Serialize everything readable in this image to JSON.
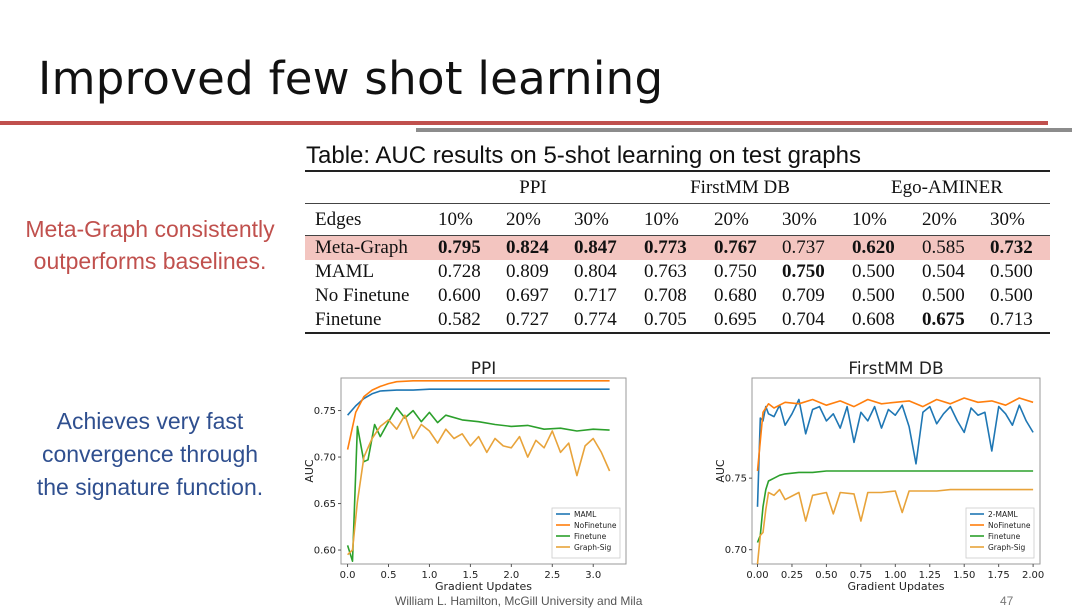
{
  "slide": {
    "title": "Improved few shot learning",
    "footer": "William L. Hamilton, McGill University and Mila",
    "page_number": "47",
    "rule_colors": [
      "#c0504d",
      "#8c8c8c"
    ]
  },
  "side_notes": {
    "red": [
      "Meta-Graph consistently",
      "outperforms baselines."
    ],
    "blue": [
      "Achieves very fast",
      "convergence through",
      "the signature function."
    ],
    "red_color": "#c0504d",
    "blue_color": "#2f4f8f"
  },
  "table": {
    "caption": "Table: AUC results on 5-shot learning on test graphs",
    "groups": [
      "PPI",
      "FirstMM DB",
      "Ego-AMINER"
    ],
    "header_label": "Edges",
    "columns": [
      "10%",
      "20%",
      "30%",
      "10%",
      "20%",
      "30%",
      "10%",
      "20%",
      "30%"
    ],
    "highlight_color": "#f3c5c0",
    "rows": [
      {
        "method": "Meta-Graph",
        "values": [
          "0.795",
          "0.824",
          "0.847",
          "0.773",
          "0.767",
          "0.737",
          "0.620",
          "0.585",
          "0.732"
        ],
        "bold": [
          true,
          true,
          true,
          true,
          true,
          false,
          true,
          false,
          true
        ],
        "highlight": true
      },
      {
        "method": "MAML",
        "values": [
          "0.728",
          "0.809",
          "0.804",
          "0.763",
          "0.750",
          "0.750",
          "0.500",
          "0.504",
          "0.500"
        ],
        "bold": [
          false,
          false,
          false,
          false,
          false,
          true,
          false,
          false,
          false
        ],
        "highlight": false
      },
      {
        "method": "No Finetune",
        "values": [
          "0.600",
          "0.697",
          "0.717",
          "0.708",
          "0.680",
          "0.709",
          "0.500",
          "0.500",
          "0.500"
        ],
        "bold": [
          false,
          false,
          false,
          false,
          false,
          false,
          false,
          false,
          false
        ],
        "highlight": false
      },
      {
        "method": "Finetune",
        "values": [
          "0.582",
          "0.727",
          "0.774",
          "0.705",
          "0.695",
          "0.704",
          "0.608",
          "0.675",
          "0.713"
        ],
        "bold": [
          false,
          false,
          false,
          false,
          false,
          false,
          false,
          true,
          false
        ],
        "highlight": false
      }
    ]
  },
  "chart_data": [
    {
      "type": "line",
      "title": "PPI",
      "xlabel": "Gradient Updates",
      "ylabel": "AUC",
      "xlim": [
        -0.08,
        3.4
      ],
      "ylim": [
        0.585,
        0.785
      ],
      "xticks": [
        "0.0",
        "0.5",
        "1.0",
        "1.5",
        "2.0",
        "2.5",
        "3.0"
      ],
      "xtick_values": [
        0,
        0.5,
        1.0,
        1.5,
        2.0,
        2.5,
        3.0
      ],
      "yticks": [
        "0.60",
        "0.65",
        "0.70",
        "0.75"
      ],
      "ytick_values": [
        0.6,
        0.65,
        0.7,
        0.75
      ],
      "grid": false,
      "legend_position": "bottom-right",
      "series": [
        {
          "name": "MAML",
          "color": "#1f77b4",
          "x": [
            0,
            0.1,
            0.2,
            0.3,
            0.4,
            0.6,
            0.8,
            1.0,
            1.5,
            2.0,
            2.5,
            3.0,
            3.2
          ],
          "y": [
            0.745,
            0.755,
            0.763,
            0.768,
            0.771,
            0.772,
            0.772,
            0.773,
            0.773,
            0.773,
            0.773,
            0.773,
            0.773
          ]
        },
        {
          "name": "NoFinetune",
          "color": "#ff7f0e",
          "x": [
            0,
            0.1,
            0.2,
            0.3,
            0.4,
            0.5,
            0.6,
            0.8,
            1.0,
            1.5,
            2.0,
            2.5,
            3.0,
            3.2
          ],
          "y": [
            0.708,
            0.748,
            0.765,
            0.772,
            0.776,
            0.779,
            0.781,
            0.782,
            0.782,
            0.782,
            0.782,
            0.782,
            0.782,
            0.782
          ]
        },
        {
          "name": "Finetune",
          "color": "#2ca02c",
          "x": [
            0,
            0.06,
            0.12,
            0.2,
            0.25,
            0.33,
            0.4,
            0.5,
            0.6,
            0.7,
            0.8,
            0.9,
            1.0,
            1.1,
            1.2,
            1.4,
            1.6,
            1.8,
            2.0,
            2.2,
            2.4,
            2.6,
            2.8,
            3.0,
            3.2
          ],
          "y": [
            0.605,
            0.588,
            0.733,
            0.695,
            0.697,
            0.735,
            0.722,
            0.738,
            0.753,
            0.742,
            0.75,
            0.738,
            0.748,
            0.737,
            0.745,
            0.74,
            0.738,
            0.735,
            0.733,
            0.734,
            0.73,
            0.731,
            0.728,
            0.73,
            0.729
          ]
        },
        {
          "name": "Graph-Sig",
          "color": "#e8a33a",
          "x": [
            0,
            0.06,
            0.12,
            0.2,
            0.3,
            0.4,
            0.5,
            0.6,
            0.7,
            0.8,
            0.9,
            1.0,
            1.1,
            1.2,
            1.3,
            1.4,
            1.5,
            1.6,
            1.7,
            1.8,
            1.9,
            2.0,
            2.1,
            2.2,
            2.3,
            2.4,
            2.5,
            2.6,
            2.7,
            2.8,
            2.9,
            3.0,
            3.1,
            3.2
          ],
          "y": [
            0.595,
            0.6,
            0.652,
            0.7,
            0.72,
            0.733,
            0.74,
            0.73,
            0.745,
            0.72,
            0.735,
            0.728,
            0.715,
            0.73,
            0.72,
            0.725,
            0.712,
            0.722,
            0.705,
            0.72,
            0.712,
            0.71,
            0.722,
            0.7,
            0.718,
            0.71,
            0.728,
            0.705,
            0.715,
            0.68,
            0.712,
            0.72,
            0.705,
            0.685
          ]
        }
      ]
    },
    {
      "type": "line",
      "title": "FirstMM DB",
      "xlabel": "Gradient Updates",
      "ylabel": "AUC",
      "xlim": [
        -0.04,
        2.05
      ],
      "ylim": [
        0.69,
        0.82
      ],
      "xticks": [
        "0.00",
        "0.25",
        "0.50",
        "0.75",
        "1.00",
        "1.25",
        "1.50",
        "1.75",
        "2.00"
      ],
      "xtick_values": [
        0,
        0.25,
        0.5,
        0.75,
        1.0,
        1.25,
        1.5,
        1.75,
        2.0
      ],
      "yticks": [
        "0.70",
        "0.75"
      ],
      "ytick_values": [
        0.7,
        0.75
      ],
      "grid": false,
      "legend_position": "bottom-right",
      "series": [
        {
          "name": "2-MAML",
          "color": "#1f77b4",
          "x": [
            0,
            0.02,
            0.04,
            0.06,
            0.08,
            0.12,
            0.16,
            0.2,
            0.25,
            0.3,
            0.35,
            0.4,
            0.45,
            0.5,
            0.55,
            0.6,
            0.65,
            0.7,
            0.75,
            0.8,
            0.85,
            0.9,
            0.95,
            1.0,
            1.05,
            1.1,
            1.15,
            1.2,
            1.25,
            1.3,
            1.35,
            1.4,
            1.45,
            1.5,
            1.55,
            1.6,
            1.65,
            1.7,
            1.75,
            1.8,
            1.85,
            1.9,
            1.95,
            2.0
          ],
          "y": [
            0.73,
            0.792,
            0.79,
            0.8,
            0.795,
            0.793,
            0.801,
            0.787,
            0.795,
            0.805,
            0.781,
            0.798,
            0.8,
            0.79,
            0.795,
            0.785,
            0.8,
            0.775,
            0.796,
            0.79,
            0.8,
            0.785,
            0.798,
            0.794,
            0.801,
            0.786,
            0.76,
            0.796,
            0.8,
            0.788,
            0.795,
            0.8,
            0.79,
            0.782,
            0.799,
            0.794,
            0.796,
            0.769,
            0.8,
            0.795,
            0.787,
            0.801,
            0.79,
            0.782
          ]
        },
        {
          "name": "NoFinetune",
          "color": "#ff7f0e",
          "x": [
            0,
            0.04,
            0.08,
            0.12,
            0.2,
            0.3,
            0.4,
            0.5,
            0.6,
            0.7,
            0.8,
            0.9,
            1.0,
            1.1,
            1.2,
            1.3,
            1.4,
            1.5,
            1.6,
            1.7,
            1.8,
            1.9,
            2.0
          ],
          "y": [
            0.755,
            0.796,
            0.802,
            0.799,
            0.803,
            0.802,
            0.805,
            0.801,
            0.804,
            0.8,
            0.805,
            0.802,
            0.803,
            0.804,
            0.8,
            0.805,
            0.802,
            0.806,
            0.803,
            0.804,
            0.801,
            0.806,
            0.803
          ]
        },
        {
          "name": "Finetune",
          "color": "#2ca02c",
          "x": [
            0,
            0.02,
            0.04,
            0.06,
            0.08,
            0.12,
            0.16,
            0.2,
            0.3,
            0.4,
            0.5,
            0.6,
            0.8,
            1.0,
            1.2,
            1.4,
            1.6,
            1.8,
            2.0
          ],
          "y": [
            0.705,
            0.71,
            0.73,
            0.742,
            0.748,
            0.75,
            0.752,
            0.753,
            0.754,
            0.754,
            0.755,
            0.755,
            0.755,
            0.755,
            0.755,
            0.755,
            0.755,
            0.755,
            0.755
          ]
        },
        {
          "name": "Graph-Sig",
          "color": "#e8a33a",
          "x": [
            0,
            0.02,
            0.04,
            0.06,
            0.08,
            0.12,
            0.16,
            0.2,
            0.3,
            0.35,
            0.4,
            0.5,
            0.55,
            0.6,
            0.7,
            0.75,
            0.8,
            0.9,
            1.0,
            1.05,
            1.1,
            1.2,
            1.3,
            1.4,
            1.6,
            1.8,
            2.0
          ],
          "y": [
            0.69,
            0.71,
            0.712,
            0.728,
            0.74,
            0.738,
            0.742,
            0.735,
            0.74,
            0.72,
            0.738,
            0.74,
            0.725,
            0.74,
            0.739,
            0.72,
            0.74,
            0.74,
            0.741,
            0.726,
            0.741,
            0.741,
            0.741,
            0.742,
            0.742,
            0.742,
            0.742
          ]
        }
      ]
    }
  ]
}
